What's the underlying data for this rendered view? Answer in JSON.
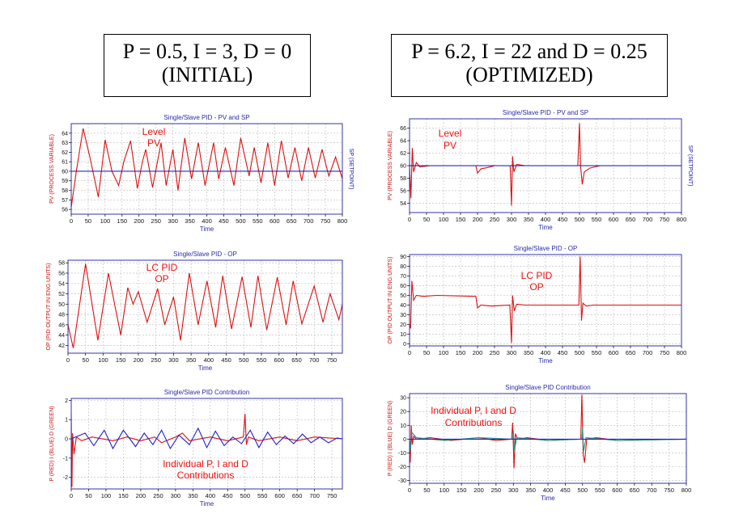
{
  "headers": {
    "left": {
      "line1": "P = 0.5, I = 3, D = 0",
      "line2": "(INITIAL)"
    },
    "right": {
      "line1": "P = 6.2, I = 22 and D = 0.25",
      "line2": "(OPTIMIZED)"
    }
  },
  "colors": {
    "pv": "#dd1111",
    "sp": "#1111aa",
    "blue": "#2222cc",
    "teal": "#1a9a8a",
    "frame": "#3333aa",
    "title": "#2a2aaa",
    "annot": "#ee1111"
  },
  "chart_data": [
    {
      "id": "init-pv",
      "type": "line",
      "title": "Single/Slave PID - PV and SP",
      "xlabel": "Time",
      "ylabel": "PV (PROCESS VARIABLE)",
      "ylabel2": "SP (SETPOINT)",
      "xlim": [
        0,
        800
      ],
      "ylim": [
        55.5,
        65
      ],
      "xticks": [
        "0",
        "50",
        "100",
        "150",
        "200",
        "250",
        "300",
        "350",
        "400",
        "450",
        "500",
        "550",
        "600",
        "650",
        "700",
        "750",
        "800"
      ],
      "yticks": [
        "56",
        "57",
        "58",
        "59",
        "60",
        "61",
        "62",
        "63",
        "64"
      ],
      "annotation": [
        "Level",
        "PV"
      ],
      "series": [
        {
          "name": "PV",
          "color": "#dd1111",
          "x": [
            0,
            15,
            35,
            55,
            80,
            100,
            120,
            140,
            155,
            175,
            195,
            210,
            220,
            240,
            265,
            280,
            300,
            315,
            335,
            355,
            375,
            395,
            420,
            435,
            455,
            480,
            500,
            525,
            540,
            560,
            580,
            600,
            620,
            640,
            660,
            680,
            700,
            720,
            740,
            760,
            780,
            800
          ],
          "y": [
            56.2,
            60,
            64.5,
            61.5,
            57.3,
            63.3,
            60,
            58.5,
            61,
            63.2,
            58.2,
            61,
            62.3,
            58.3,
            63,
            58.5,
            62.3,
            58,
            63.5,
            59.2,
            63,
            58.5,
            63,
            59.2,
            62.5,
            58.5,
            63.5,
            59.5,
            62.5,
            58.8,
            63,
            58.5,
            63.2,
            59.3,
            62.5,
            59,
            62.5,
            59.3,
            62.3,
            59.5,
            61.5,
            59.2
          ]
        },
        {
          "name": "SP",
          "color": "#1111aa",
          "x": [
            0,
            800
          ],
          "y": [
            60,
            60
          ]
        }
      ]
    },
    {
      "id": "opt-pv",
      "type": "line",
      "title": "Single/Slave PID - PV and SP",
      "xlabel": "Time",
      "ylabel": "PV (PROCESS VARIABLE)",
      "ylabel2": "SP (SETPOINT)",
      "xlim": [
        0,
        800
      ],
      "ylim": [
        52.5,
        67.5
      ],
      "xticks": [
        "0",
        "50",
        "100",
        "150",
        "200",
        "250",
        "300",
        "350",
        "400",
        "450",
        "500",
        "550",
        "600",
        "650",
        "700",
        "750",
        "800"
      ],
      "yticks": [
        "54",
        "56",
        "58",
        "60",
        "62",
        "64",
        "66"
      ],
      "annotation": [
        "Level",
        "PV"
      ],
      "series": [
        {
          "name": "PV",
          "color": "#dd1111",
          "x": [
            0,
            4,
            8,
            12,
            20,
            30,
            60,
            195,
            200,
            210,
            230,
            250,
            296,
            300,
            303,
            307,
            315,
            340,
            400,
            495,
            500,
            503,
            508,
            514,
            530,
            560,
            800
          ],
          "y": [
            60,
            54.8,
            62.8,
            59,
            60.5,
            59.8,
            60,
            60,
            58.8,
            59.5,
            59.7,
            60,
            60,
            53.6,
            61.5,
            59,
            60.2,
            60,
            60,
            60,
            66.8,
            60,
            57,
            59,
            59.6,
            60,
            60
          ]
        },
        {
          "name": "SP",
          "color": "#1111aa",
          "x": [
            0,
            800
          ],
          "y": [
            60,
            60
          ]
        }
      ]
    },
    {
      "id": "init-op",
      "type": "line",
      "title": "Single/Slave PID - OP",
      "xlabel": "Time",
      "ylabel": "OP (PID OUTPUT IN ENG.UNITS)",
      "xlim": [
        0,
        780
      ],
      "ylim": [
        40.5,
        58.5
      ],
      "xticks": [
        "0",
        "50",
        "100",
        "150",
        "200",
        "250",
        "300",
        "350",
        "400",
        "450",
        "500",
        "550",
        "600",
        "650",
        "700",
        "750"
      ],
      "yticks": [
        "42",
        "44",
        "46",
        "48",
        "50",
        "52",
        "54",
        "56",
        "58"
      ],
      "annotation": [
        "LC PID",
        "OP"
      ],
      "series": [
        {
          "name": "OP",
          "color": "#dd1111",
          "x": [
            0,
            15,
            50,
            85,
            115,
            150,
            170,
            185,
            200,
            225,
            255,
            275,
            300,
            320,
            345,
            370,
            395,
            420,
            440,
            465,
            495,
            520,
            540,
            565,
            595,
            620,
            640,
            665,
            700,
            725,
            745,
            770,
            780
          ],
          "y": [
            46,
            41.5,
            57.8,
            43,
            56,
            44,
            53.2,
            50,
            52.4,
            46.5,
            53,
            46,
            51.4,
            43,
            56,
            46,
            54.5,
            45.5,
            55.5,
            45.2,
            55.3,
            45.5,
            55.5,
            45,
            55.2,
            46,
            54.5,
            46.2,
            53.5,
            46.5,
            52,
            47,
            50
          ]
        }
      ]
    },
    {
      "id": "opt-op",
      "type": "line",
      "title": "Single/Slave PID - OP",
      "xlabel": "Time",
      "ylabel": "OP (PID OUTPUT IN ENG.UNITS)",
      "xlim": [
        0,
        800
      ],
      "ylim": [
        -2,
        92
      ],
      "xticks": [
        "0",
        "50",
        "100",
        "150",
        "200",
        "250",
        "300",
        "350",
        "400",
        "450",
        "500",
        "550",
        "600",
        "650",
        "700",
        "750",
        "800"
      ],
      "yticks": [
        "0",
        "10",
        "20",
        "30",
        "40",
        "50",
        "60",
        "70",
        "80",
        "90"
      ],
      "annotation": [
        "LC PID",
        "OP"
      ],
      "series": [
        {
          "name": "OP",
          "color": "#dd1111",
          "x": [
            0,
            3,
            7,
            12,
            20,
            40,
            80,
            195,
            200,
            210,
            240,
            295,
            300,
            303,
            308,
            315,
            340,
            400,
            498,
            502,
            506,
            510,
            520,
            540,
            800
          ],
          "y": [
            20,
            16,
            65,
            45,
            50,
            49,
            50,
            49,
            37,
            40,
            39,
            40,
            1,
            50,
            34,
            41,
            40,
            40,
            40,
            90,
            24,
            42,
            39,
            40,
            40
          ]
        }
      ]
    },
    {
      "id": "init-contrib",
      "type": "line",
      "title": "Single/Slave PID Contribution",
      "xlabel": "Time",
      "ylabel": "P (RED)    I (BLUE)    D (GREEN)",
      "xlim": [
        0,
        780
      ],
      "ylim": [
        -2.6,
        2.1
      ],
      "xticks": [
        "0",
        "50",
        "100",
        "150",
        "200",
        "250",
        "300",
        "350",
        "400",
        "450",
        "500",
        "550",
        "600",
        "650",
        "700",
        "750"
      ],
      "yticks": [
        "-2",
        "-1",
        "0",
        "1",
        "2"
      ],
      "annotation": [
        "Individual P, I and D",
        "Contributions"
      ],
      "series": [
        {
          "name": "P",
          "color": "#dd1111",
          "x": [
            0,
            2,
            4,
            8,
            15,
            30,
            60,
            120,
            160,
            200,
            240,
            260,
            300,
            320,
            340,
            400,
            450,
            495,
            500,
            504,
            510,
            540,
            600,
            650,
            700,
            780
          ],
          "y": [
            1.3,
            -2.5,
            0.3,
            -0.8,
            0.1,
            -0.1,
            0.1,
            -0.1,
            0.1,
            -0.1,
            0.1,
            -0.2,
            0.1,
            0.3,
            -0.1,
            0.1,
            -0.1,
            0.1,
            1.3,
            -0.3,
            0.1,
            -0.1,
            0.1,
            -0.1,
            0.1,
            0
          ]
        },
        {
          "name": "I",
          "color": "#2222cc",
          "x": [
            0,
            40,
            65,
            95,
            120,
            150,
            185,
            210,
            235,
            260,
            285,
            310,
            340,
            365,
            390,
            415,
            440,
            465,
            490,
            515,
            540,
            565,
            590,
            615,
            640,
            665,
            690,
            715,
            740,
            765,
            780
          ],
          "y": [
            0,
            0.3,
            -0.35,
            0.45,
            -0.5,
            0.45,
            -0.4,
            0.3,
            -0.3,
            0.45,
            -0.5,
            0.2,
            -0.3,
            0.55,
            -0.45,
            0.4,
            -0.35,
            0.1,
            -0.25,
            0.45,
            -0.45,
            0.35,
            -0.3,
            0.15,
            -0.25,
            0.25,
            -0.2,
            0.1,
            -0.2,
            0.05,
            0
          ]
        }
      ]
    },
    {
      "id": "opt-contrib",
      "type": "line",
      "title": "Single/Slave PID Contribution",
      "xlabel": "Time",
      "ylabel": "P (RED)    I (BLUE)    D (GREEN)",
      "xlim": [
        0,
        800
      ],
      "ylim": [
        -32,
        33
      ],
      "xticks": [
        "0",
        "50",
        "100",
        "150",
        "200",
        "250",
        "300",
        "350",
        "400",
        "450",
        "500",
        "550",
        "600",
        "650",
        "700",
        "750",
        "800"
      ],
      "yticks": [
        "-30",
        "-20",
        "-10",
        "0",
        "10",
        "20",
        "30"
      ],
      "annotation": [
        "Individual P, I and D",
        "Contributions"
      ],
      "series": [
        {
          "name": "P",
          "color": "#dd1111",
          "x": [
            0,
            2,
            5,
            8,
            12,
            20,
            60,
            120,
            200,
            250,
            295,
            298,
            302,
            306,
            312,
            340,
            400,
            495,
            498,
            502,
            506,
            512,
            540,
            600,
            800
          ],
          "y": [
            0,
            -17,
            10,
            -4,
            2,
            0,
            1,
            -1,
            1,
            -1,
            0,
            12,
            -21,
            4,
            0,
            1,
            -1,
            0,
            32,
            -11,
            -17,
            0,
            1,
            -1,
            0
          ]
        },
        {
          "name": "D",
          "color": "#1a9a8a",
          "x": [
            0,
            3,
            6,
            20,
            100,
            200,
            298,
            300,
            303,
            310,
            400,
            498,
            500,
            503,
            510,
            600,
            800
          ],
          "y": [
            0,
            -8,
            5,
            1,
            -1,
            1,
            0,
            6,
            -8,
            1,
            -1,
            0,
            8,
            -9,
            1,
            -1,
            0
          ]
        },
        {
          "name": "I",
          "color": "#2222cc",
          "x": [
            0,
            800
          ],
          "y": [
            0,
            0
          ]
        }
      ]
    }
  ]
}
